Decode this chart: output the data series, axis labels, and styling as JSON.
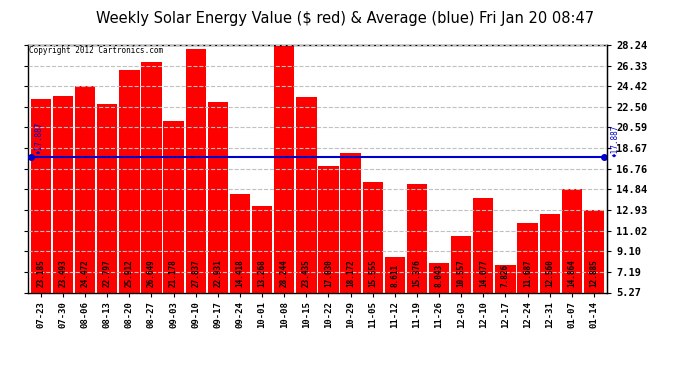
{
  "title": "Weekly Solar Energy Value ($ red) & Average (blue) Fri Jan 20 08:47",
  "copyright": "Copyright 2012 Cartronics.com",
  "categories": [
    "07-23",
    "07-30",
    "08-06",
    "08-13",
    "08-20",
    "08-27",
    "09-03",
    "09-10",
    "09-17",
    "09-24",
    "10-01",
    "10-08",
    "10-15",
    "10-22",
    "10-29",
    "11-05",
    "11-12",
    "11-19",
    "11-26",
    "12-03",
    "12-10",
    "12-17",
    "12-24",
    "12-31",
    "01-07",
    "01-14"
  ],
  "values": [
    23.185,
    23.493,
    24.472,
    22.797,
    25.912,
    26.649,
    21.178,
    27.837,
    22.931,
    14.418,
    13.268,
    28.244,
    23.435,
    17.03,
    18.172,
    15.555,
    8.611,
    15.376,
    8.043,
    10.557,
    14.077,
    7.826,
    11.687,
    12.56,
    14.864,
    12.885
  ],
  "average": 17.887,
  "bar_color": "#ff0000",
  "avg_line_color": "#0000cd",
  "background_color": "#ffffff",
  "plot_bg_color": "#ffffff",
  "grid_color": "#c0c0c0",
  "title_fontsize": 10.5,
  "ylim_min": 5.27,
  "ylim_max": 28.24,
  "yticks": [
    5.27,
    7.19,
    9.1,
    11.02,
    12.93,
    14.84,
    16.76,
    18.67,
    20.59,
    22.5,
    24.42,
    26.33,
    28.24
  ]
}
